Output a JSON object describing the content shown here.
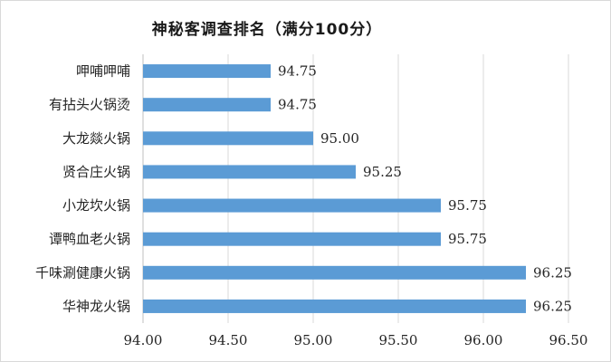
{
  "chart_data": {
    "type": "bar",
    "orientation": "horizontal",
    "title": "神秘客调查排名（满分100分）",
    "categories": [
      "呷哺呷哺",
      "有拈头火锅烫",
      "大龙燚火锅",
      "贤合庄火锅",
      "小龙坎火锅",
      "谭鸭血老火锅",
      "千味涮健康火锅",
      "华神龙火锅"
    ],
    "values": [
      94.75,
      94.75,
      95.0,
      95.25,
      95.75,
      95.75,
      96.25,
      96.25
    ],
    "value_labels": [
      "94.75",
      "94.75",
      "95.00",
      "95.25",
      "95.75",
      "95.75",
      "96.25",
      "96.25"
    ],
    "xlim": [
      94.0,
      96.5
    ],
    "x_ticks": [
      94.0,
      94.5,
      95.0,
      95.5,
      96.0,
      96.5
    ],
    "x_tick_labels": [
      "94.00",
      "94.50",
      "95.00",
      "95.50",
      "96.00",
      "96.50"
    ],
    "grid": "vertical",
    "legend": "none",
    "bar_color": "#5b9bd5",
    "grid_color": "#d9d9d9"
  }
}
